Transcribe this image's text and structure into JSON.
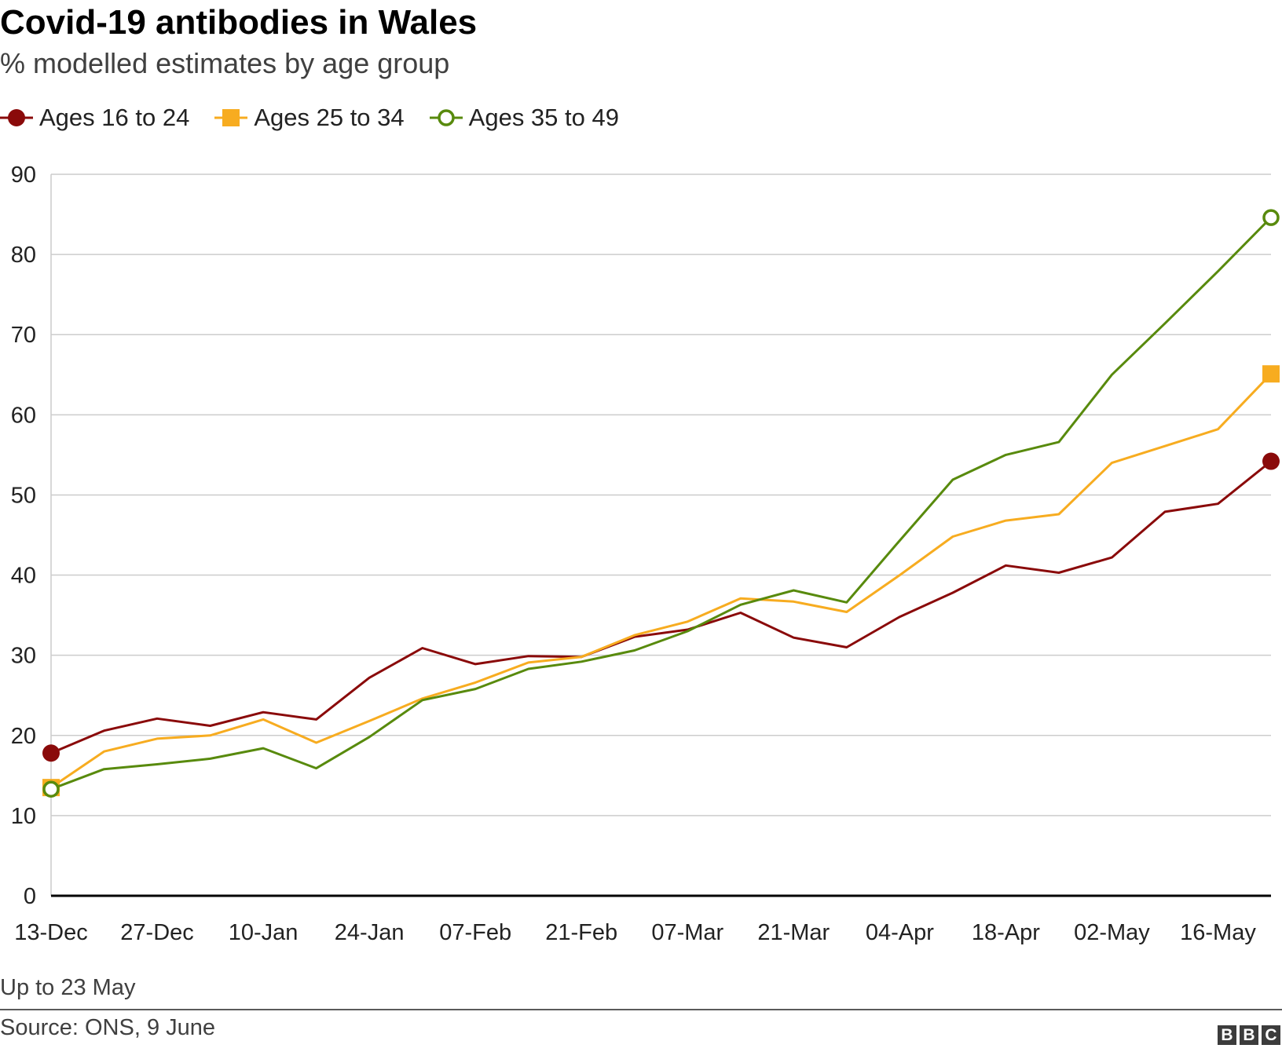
{
  "title": "Covid-19 antibodies in Wales",
  "subtitle": "% modelled estimates by age group",
  "note": "Up to 23 May",
  "source": "Source: ONS, 9 June",
  "logo": [
    "B",
    "B",
    "C"
  ],
  "colors": {
    "series1": "#8a0a0a",
    "series2": "#f7ac20",
    "series3": "#588a0d",
    "grid": "#cccccc",
    "axis": "#000000"
  },
  "chart_data": {
    "type": "line",
    "title": "Covid-19 antibodies in Wales",
    "subtitle": "% modelled estimates by age group",
    "xlabel": "",
    "ylabel": "",
    "ylim": [
      0,
      90
    ],
    "yticks": [
      0,
      10,
      20,
      30,
      40,
      50,
      60,
      70,
      80,
      90
    ],
    "xtick_labels": [
      "13-Dec",
      "27-Dec",
      "10-Jan",
      "24-Jan",
      "07-Feb",
      "21-Feb",
      "07-Mar",
      "21-Mar",
      "04-Apr",
      "18-Apr",
      "02-May",
      "16-May"
    ],
    "x": [
      "13-Dec",
      "20-Dec",
      "27-Dec",
      "03-Jan",
      "10-Jan",
      "17-Jan",
      "24-Jan",
      "31-Jan",
      "07-Feb",
      "14-Feb",
      "21-Feb",
      "28-Feb",
      "07-Mar",
      "14-Mar",
      "21-Mar",
      "28-Mar",
      "04-Apr",
      "11-Apr",
      "18-Apr",
      "25-Apr",
      "02-May",
      "09-May",
      "16-May",
      "23-May"
    ],
    "legend_position": "top-left",
    "grid": true,
    "series": [
      {
        "name": "Ages 16 to 24",
        "color": "#8a0a0a",
        "marker": "filled-circle",
        "values": [
          17.8,
          20.6,
          22.1,
          21.2,
          22.9,
          22.0,
          27.2,
          30.9,
          28.9,
          29.9,
          29.8,
          32.3,
          33.2,
          35.3,
          32.2,
          31.0,
          34.8,
          37.8,
          41.2,
          40.3,
          42.2,
          47.9,
          48.9,
          54.2
        ]
      },
      {
        "name": "Ages 25 to 34",
        "color": "#f7ac20",
        "marker": "filled-square",
        "values": [
          13.5,
          18.0,
          19.6,
          20.0,
          22.0,
          19.1,
          21.8,
          24.6,
          26.6,
          29.1,
          29.8,
          32.5,
          34.2,
          37.1,
          36.7,
          35.4,
          40.0,
          44.8,
          46.8,
          47.6,
          54.0,
          56.1,
          58.2,
          65.1
        ]
      },
      {
        "name": "Ages 35 to 49",
        "color": "#588a0d",
        "marker": "open-circle",
        "values": [
          13.3,
          15.8,
          16.4,
          17.1,
          18.4,
          15.9,
          19.8,
          24.4,
          25.8,
          28.3,
          29.2,
          30.6,
          33.0,
          36.3,
          38.1,
          36.6,
          44.3,
          51.9,
          55.0,
          56.6,
          65.0,
          71.4,
          77.9,
          84.6
        ]
      }
    ]
  }
}
